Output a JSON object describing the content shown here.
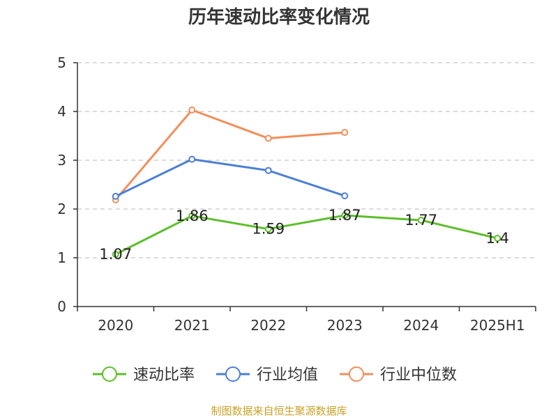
{
  "title": "历年速动比率变化情况",
  "source": "制图数据来自恒生聚源数据库",
  "chart_data": {
    "type": "line",
    "title": "历年速动比率变化情况",
    "categories": [
      "2020",
      "2021",
      "2022",
      "2023",
      "2024",
      "2025H1"
    ],
    "ylim": [
      0,
      5
    ],
    "yticks": [
      0,
      1,
      2,
      3,
      4,
      5
    ],
    "grid": true,
    "legend_position": "bottom",
    "series": [
      {
        "name": "速动比率",
        "color": "#5cbf2a",
        "values": [
          1.07,
          1.86,
          1.59,
          1.87,
          1.77,
          1.4
        ],
        "labels": [
          "1.07",
          "1.86",
          "1.59",
          "1.87",
          "1.77",
          "1.4"
        ]
      },
      {
        "name": "行业均值",
        "color": "#4a7fd6",
        "values": [
          2.26,
          3.02,
          2.79,
          2.27,
          null,
          null
        ]
      },
      {
        "name": "行业中位数",
        "color": "#f28e5b",
        "values": [
          2.19,
          4.03,
          3.45,
          3.57,
          null,
          null
        ]
      }
    ]
  }
}
